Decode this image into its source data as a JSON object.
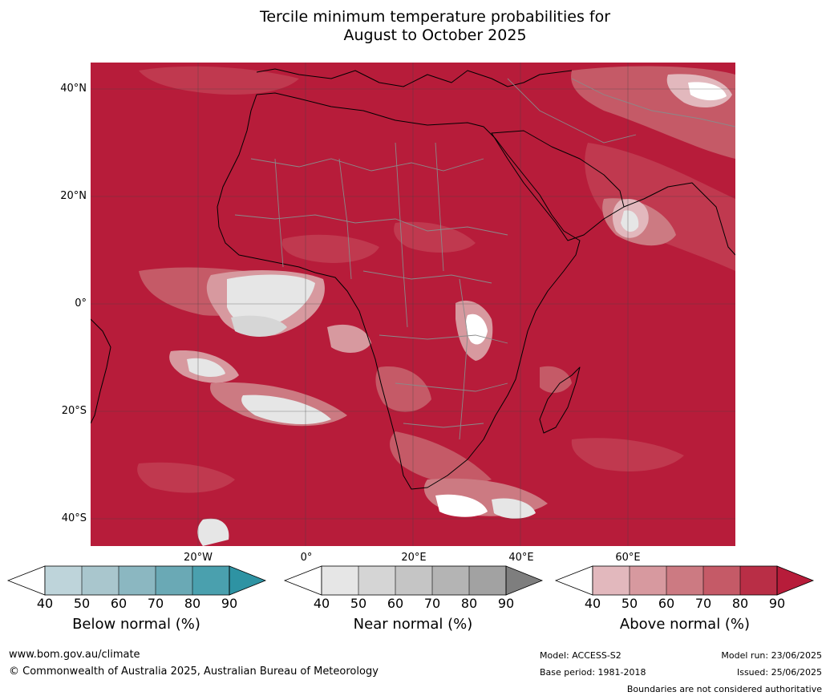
{
  "title": {
    "line1": "Tercile minimum temperature probabilities for",
    "line2": "August to October 2025"
  },
  "map": {
    "lat_labels": [
      "40°N",
      "20°N",
      "0°",
      "20°S",
      "40°S"
    ],
    "lon_labels": [
      "20°W",
      "0°",
      "20°E",
      "40°E",
      "60°E"
    ],
    "dominant_category": "Above normal 90%+",
    "colors": {
      "above_90": "#b71c3a",
      "above_80": "#c0394f",
      "above_70": "#c55a67",
      "above_60": "#cc7a82",
      "above_50": "#d7999f",
      "above_40": "#e2b8bd",
      "near_40": "#e6e6e6",
      "near_50": "#d6d6d6",
      "near_60": "#c4c4c4",
      "near_70": "#b3b3b3",
      "near_80": "#a0a0a0",
      "near_90": "#808080",
      "below_50": "#a8c6cd",
      "coast": "#000000",
      "borders": "#7f7f7f",
      "grid": "#555555"
    }
  },
  "colorbars": [
    {
      "label": "Below normal (%)",
      "ticks": [
        "40",
        "50",
        "60",
        "70",
        "80",
        "90"
      ],
      "colors": [
        "#ffffff",
        "#bed4da",
        "#a9c6cd",
        "#8bb7c1",
        "#6aa9b5",
        "#4aa0ae",
        "#2e93a3"
      ]
    },
    {
      "label": "Near normal (%)",
      "ticks": [
        "40",
        "50",
        "60",
        "70",
        "80",
        "90"
      ],
      "colors": [
        "#ffffff",
        "#e6e6e6",
        "#d5d5d5",
        "#c5c5c5",
        "#b4b4b4",
        "#a2a2a2",
        "#7e7e7e"
      ]
    },
    {
      "label": "Above normal (%)",
      "ticks": [
        "40",
        "50",
        "60",
        "70",
        "80",
        "90"
      ],
      "colors": [
        "#ffffff",
        "#e2b8bd",
        "#d7999f",
        "#cc7a82",
        "#c55a67",
        "#b92e46",
        "#b71c3a"
      ]
    }
  ],
  "footer": {
    "website": "www.bom.gov.au/climate",
    "copyright": "© Commonwealth of Australia 2025, Australian Bureau of Meteorology",
    "model": "Model: ACCESS-S2",
    "base_period": "Base period: 1981-2018",
    "model_run": "Model run: 23/06/2025",
    "issued": "Issued: 25/06/2025",
    "disclaimer": "Boundaries are not considered authoritative"
  }
}
